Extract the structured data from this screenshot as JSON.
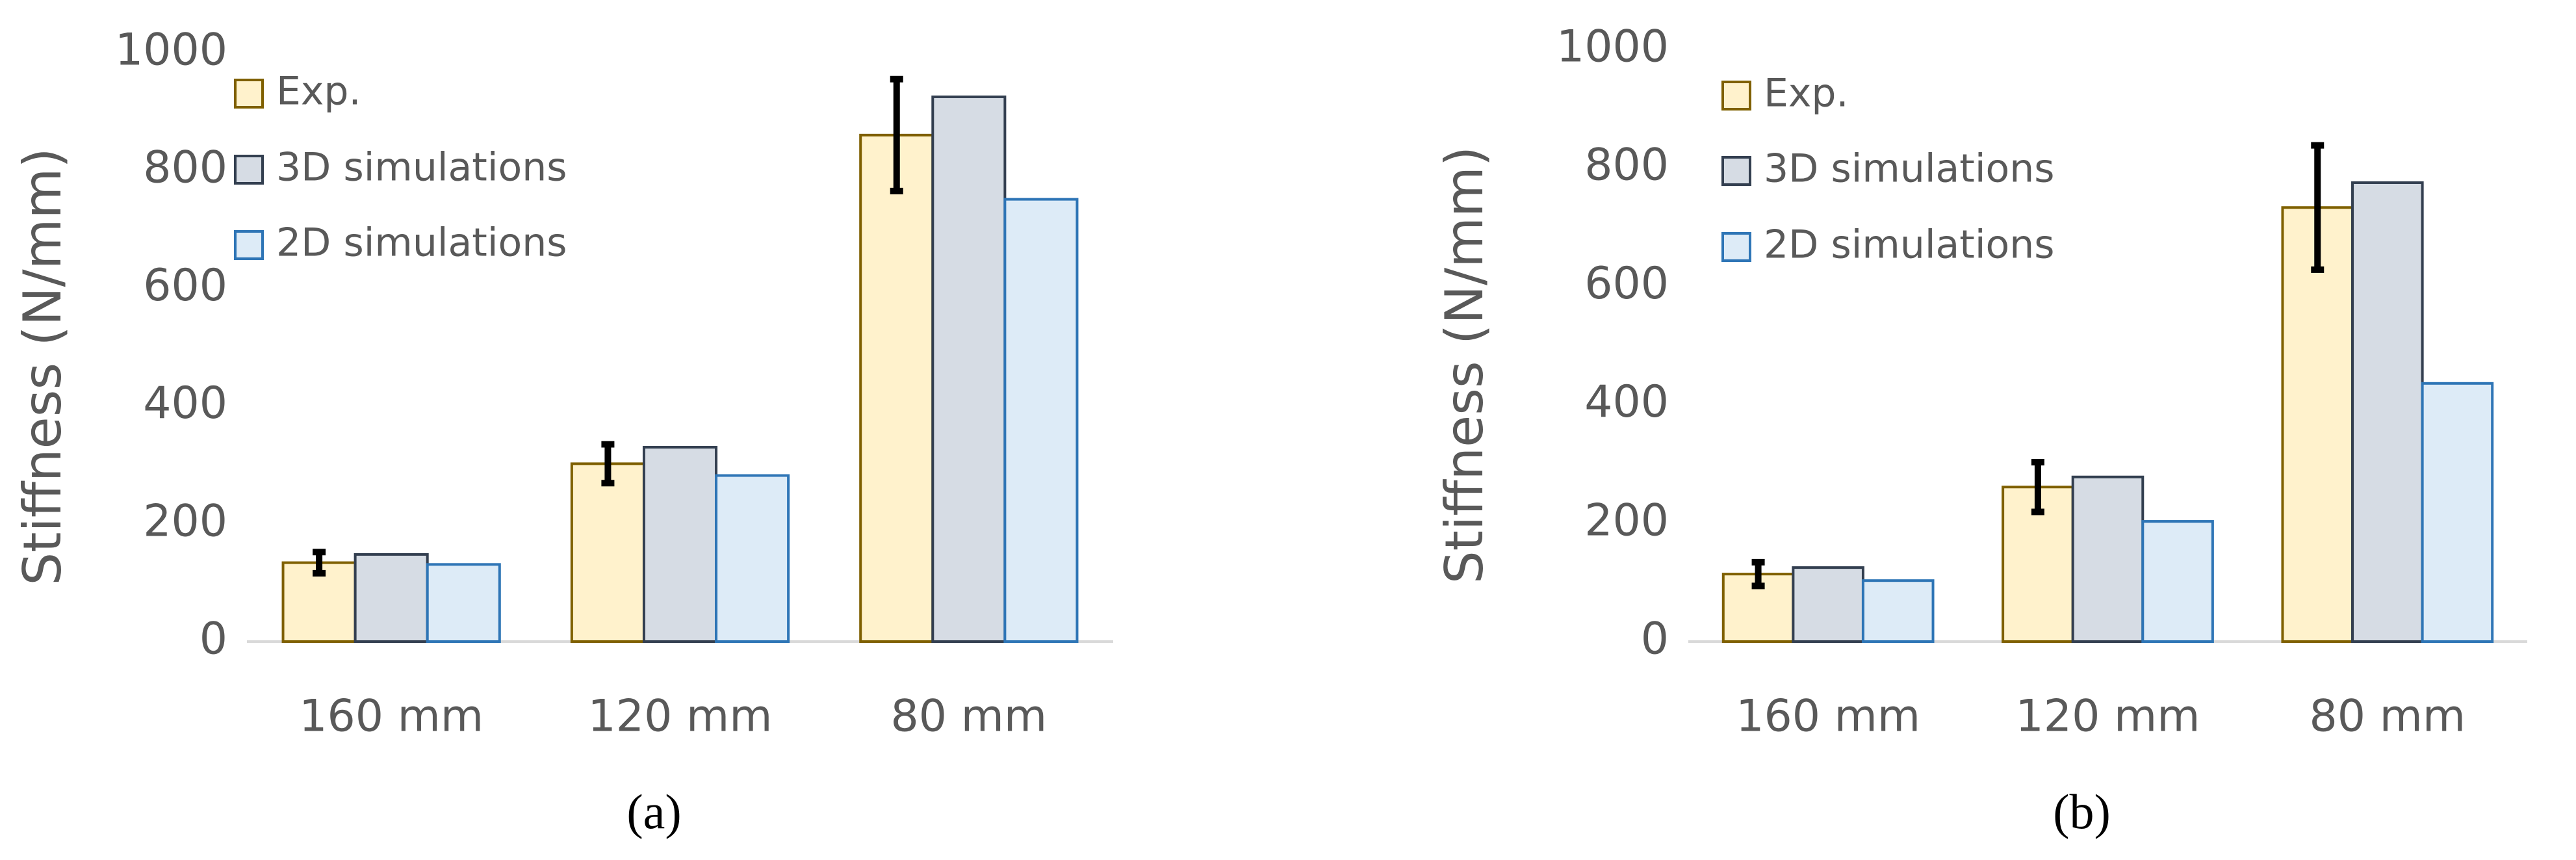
{
  "chart_data": [
    {
      "type": "bar",
      "y_label": "Stiffness (N/mm)",
      "caption": "(a)",
      "categories": [
        "160 mm",
        "120 mm",
        "80 mm"
      ],
      "series": [
        {
          "name": "Exp.",
          "color": "#fff2cc",
          "edge": "#7f6000",
          "values": [
            134,
            302,
            860
          ],
          "errors": [
            18,
            33,
            95
          ]
        },
        {
          "name": "3D simulations",
          "color": "#d6dce4",
          "edge": "#333f50",
          "values": [
            148,
            330,
            925
          ]
        },
        {
          "name": "2D simulations",
          "color": "#ddebf7",
          "edge": "#2e75b6",
          "values": [
            131,
            282,
            751
          ]
        }
      ],
      "ylim": [
        0,
        1000
      ],
      "yticks": [
        0,
        200,
        400,
        600,
        800,
        1000
      ],
      "legend": "upper left",
      "grid": false
    },
    {
      "type": "bar",
      "y_label": "Stiffness (N/mm)",
      "caption": "(b)",
      "categories": [
        "160 mm",
        "120 mm",
        "80 mm"
      ],
      "series": [
        {
          "name": "Exp.",
          "color": "#fff2cc",
          "edge": "#7f6000",
          "values": [
            114,
            261,
            733
          ],
          "errors": [
            20,
            42,
            105
          ]
        },
        {
          "name": "3D simulations",
          "color": "#d6dce4",
          "edge": "#333f50",
          "values": [
            125,
            278,
            775
          ]
        },
        {
          "name": "2D simulations",
          "color": "#ddebf7",
          "edge": "#2e75b6",
          "values": [
            103,
            203,
            436
          ]
        }
      ],
      "ylim": [
        0,
        1000
      ],
      "yticks": [
        0,
        200,
        400,
        600,
        800,
        1000
      ],
      "legend": "upper left",
      "grid": false
    }
  ]
}
